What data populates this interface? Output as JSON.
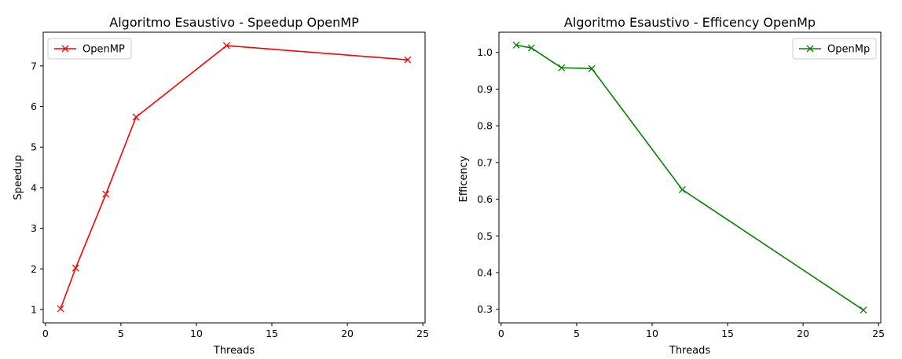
{
  "chart_data": [
    {
      "type": "line",
      "title": "Algoritmo Esaustivo - Speedup OpenMP",
      "xlabel": "Threads",
      "ylabel": "Speedup",
      "xlim": [
        -0.15,
        25.15
      ],
      "ylim": [
        0.67,
        7.83
      ],
      "xticks": [
        0,
        5,
        10,
        15,
        20,
        25
      ],
      "yticks": [
        1,
        2,
        3,
        4,
        5,
        6,
        7
      ],
      "grid": false,
      "legend_position": "top-left",
      "marker": "x",
      "series": [
        {
          "name": "OpenMP",
          "color": "#ff0000",
          "x": [
            1,
            2,
            4,
            6,
            12,
            24
          ],
          "y": [
            1.02,
            2.02,
            3.84,
            5.74,
            7.5,
            7.15
          ]
        }
      ]
    },
    {
      "type": "line",
      "title": "Algoritmo Esaustivo - Efficency OpenMp",
      "xlabel": "Threads",
      "ylabel": "Efficency",
      "xlim": [
        -0.15,
        25.15
      ],
      "ylim": [
        0.263,
        1.055
      ],
      "xticks": [
        0,
        5,
        10,
        15,
        20,
        25
      ],
      "yticks": [
        0.3,
        0.4,
        0.5,
        0.6,
        0.7,
        0.8,
        0.9,
        1.0
      ],
      "ytick_labels": [
        "0.3",
        "0.4",
        "0.5",
        "0.6",
        "0.7",
        "0.8",
        "0.9",
        "1.0"
      ],
      "grid": false,
      "legend_position": "top-right",
      "marker": "x",
      "series": [
        {
          "name": "OpenMp",
          "color": "#008000",
          "x": [
            1,
            2,
            4,
            6,
            12,
            24
          ],
          "y": [
            1.02,
            1.012,
            0.958,
            0.956,
            0.626,
            0.298
          ]
        }
      ]
    }
  ]
}
